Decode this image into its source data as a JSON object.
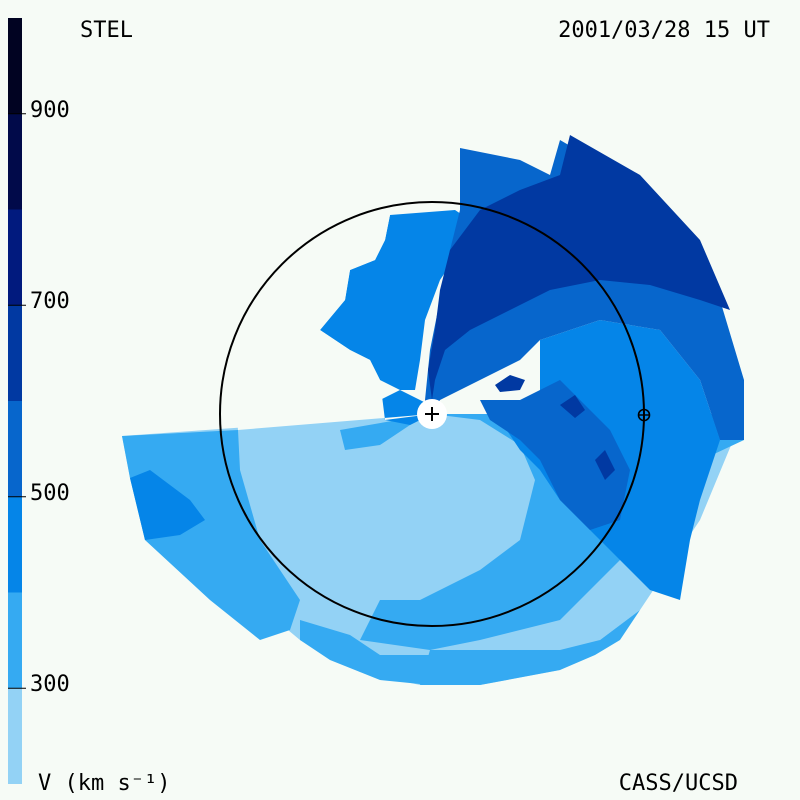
{
  "header": {
    "observatory": "STEL",
    "datetime": "2001/03/28 15 UT"
  },
  "footer": {
    "units_label": "V (km s⁻¹)",
    "credit": "CASS/UCSD"
  },
  "colorbar": {
    "min": 200,
    "max": 1000,
    "tick_values": [
      900,
      700,
      500,
      300
    ],
    "tick_labels": [
      "900",
      "700",
      "500",
      "300"
    ],
    "levels": [
      {
        "from": 200,
        "to": 300,
        "color": "#93d2f5"
      },
      {
        "from": 300,
        "to": 400,
        "color": "#35aaf2"
      },
      {
        "from": 400,
        "to": 500,
        "color": "#0585e8"
      },
      {
        "from": 500,
        "to": 600,
        "color": "#0766cc"
      },
      {
        "from": 600,
        "to": 700,
        "color": "#0139a2"
      },
      {
        "from": 700,
        "to": 800,
        "color": "#011a7e"
      },
      {
        "from": 800,
        "to": 900,
        "color": "#010a4a"
      },
      {
        "from": 900,
        "to": 1000,
        "color": "#010322"
      }
    ]
  },
  "colors": {
    "background": "#f6fbf6",
    "orbit": "#000000",
    "sun_marker": "#ffffff"
  },
  "markers": {
    "sun": "+",
    "earth": "earth-symbol"
  }
}
